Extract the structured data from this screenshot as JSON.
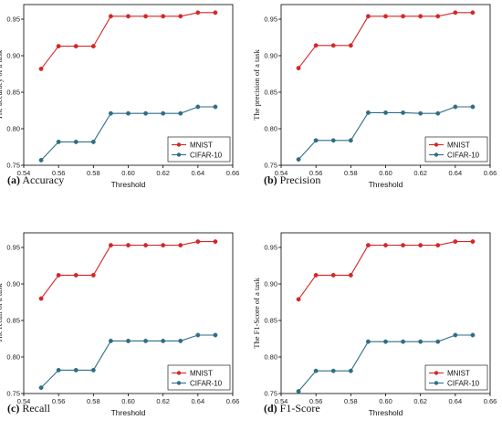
{
  "colors": {
    "mnist": "#d62728",
    "cifar": "#2f6e86",
    "axis": "#000000"
  },
  "chart_data": [
    {
      "type": "line",
      "caption_letter": "(a)",
      "caption_text": " Accuracy",
      "xlabel": "Threshold",
      "ylabel": "The accuracy of a task",
      "xlim": [
        0.54,
        0.66
      ],
      "ylim": [
        0.75,
        0.97
      ],
      "xticks": [
        "0.54",
        "0.56",
        "0.58",
        "0.60",
        "0.62",
        "0.64",
        "0.66"
      ],
      "yticks": [
        "0.75",
        "0.80",
        "0.85",
        "0.90",
        "0.95"
      ],
      "x": [
        0.55,
        0.56,
        0.57,
        0.58,
        0.59,
        0.6,
        0.61,
        0.62,
        0.63,
        0.64,
        0.65
      ],
      "series": [
        {
          "name": "MNIST",
          "values": [
            0.882,
            0.913,
            0.913,
            0.913,
            0.954,
            0.954,
            0.954,
            0.954,
            0.954,
            0.959,
            0.959
          ]
        },
        {
          "name": "CIFAR-10",
          "values": [
            0.757,
            0.782,
            0.782,
            0.782,
            0.821,
            0.821,
            0.821,
            0.821,
            0.821,
            0.83,
            0.83
          ]
        }
      ],
      "legend": "bottom-right"
    },
    {
      "type": "line",
      "caption_letter": "(b)",
      "caption_text": " Precision",
      "xlabel": "Threshold",
      "ylabel": "The precision of a task",
      "xlim": [
        0.54,
        0.66
      ],
      "ylim": [
        0.75,
        0.97
      ],
      "xticks": [
        "0.54",
        "0.56",
        "0.58",
        "0.60",
        "0.62",
        "0.64",
        "0.66"
      ],
      "yticks": [
        "0.75",
        "0.80",
        "0.85",
        "0.90",
        "0.95"
      ],
      "x": [
        0.55,
        0.56,
        0.57,
        0.58,
        0.59,
        0.6,
        0.61,
        0.62,
        0.63,
        0.64,
        0.65
      ],
      "series": [
        {
          "name": "MNIST",
          "values": [
            0.883,
            0.914,
            0.914,
            0.914,
            0.954,
            0.954,
            0.954,
            0.954,
            0.954,
            0.959,
            0.959
          ]
        },
        {
          "name": "CIFAR-10",
          "values": [
            0.758,
            0.784,
            0.784,
            0.784,
            0.822,
            0.822,
            0.822,
            0.821,
            0.821,
            0.83,
            0.83
          ]
        }
      ],
      "legend": "bottom-right"
    },
    {
      "type": "line",
      "caption_letter": "(c)",
      "caption_text": " Recall",
      "xlabel": "Threshold",
      "ylabel": "The recall of a task",
      "xlim": [
        0.54,
        0.66
      ],
      "ylim": [
        0.75,
        0.97
      ],
      "xticks": [
        "0.54",
        "0.56",
        "0.58",
        "0.60",
        "0.62",
        "0.64",
        "0.66"
      ],
      "yticks": [
        "0.75",
        "0.80",
        "0.85",
        "0.90",
        "0.95"
      ],
      "x": [
        0.55,
        0.56,
        0.57,
        0.58,
        0.59,
        0.6,
        0.61,
        0.62,
        0.63,
        0.64,
        0.65
      ],
      "series": [
        {
          "name": "MNIST",
          "values": [
            0.88,
            0.912,
            0.912,
            0.912,
            0.953,
            0.953,
            0.953,
            0.953,
            0.953,
            0.958,
            0.958
          ]
        },
        {
          "name": "CIFAR-10",
          "values": [
            0.758,
            0.782,
            0.782,
            0.782,
            0.822,
            0.822,
            0.822,
            0.822,
            0.822,
            0.83,
            0.83
          ]
        }
      ],
      "legend": "bottom-right"
    },
    {
      "type": "line",
      "caption_letter": "(d)",
      "caption_text": " F1-Score",
      "xlabel": "Threshold",
      "ylabel": "The F1-Score of a task",
      "xlim": [
        0.54,
        0.66
      ],
      "ylim": [
        0.75,
        0.97
      ],
      "xticks": [
        "0.54",
        "0.56",
        "0.58",
        "0.60",
        "0.62",
        "0.64",
        "0.66"
      ],
      "yticks": [
        "0.75",
        "0.80",
        "0.85",
        "0.90",
        "0.95"
      ],
      "x": [
        0.55,
        0.56,
        0.57,
        0.58,
        0.59,
        0.6,
        0.61,
        0.62,
        0.63,
        0.64,
        0.65
      ],
      "series": [
        {
          "name": "MNIST",
          "values": [
            0.879,
            0.912,
            0.912,
            0.912,
            0.953,
            0.953,
            0.953,
            0.953,
            0.953,
            0.958,
            0.958
          ]
        },
        {
          "name": "CIFAR-10",
          "values": [
            0.753,
            0.781,
            0.781,
            0.781,
            0.821,
            0.821,
            0.821,
            0.821,
            0.821,
            0.83,
            0.83
          ]
        }
      ],
      "legend": "bottom-right"
    }
  ]
}
